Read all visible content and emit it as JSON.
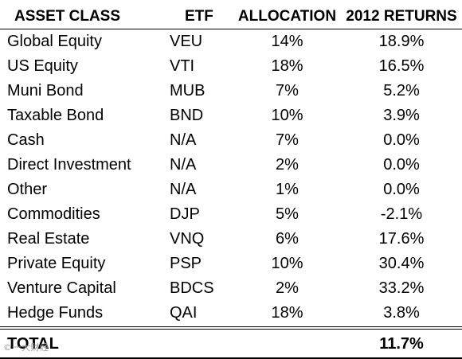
{
  "header": {
    "asset_class": "ASSET CLASS",
    "etf": "ETF",
    "allocation": "ALLOCATION",
    "returns": "2012 RETURNS"
  },
  "rows": [
    {
      "asset_class": "Global Equity",
      "etf": "VEU",
      "allocation": "14%",
      "returns": "18.9%"
    },
    {
      "asset_class": "US Equity",
      "etf": "VTI",
      "allocation": "18%",
      "returns": "16.5%"
    },
    {
      "asset_class": "Muni Bond",
      "etf": "MUB",
      "allocation": "7%",
      "returns": "5.2%"
    },
    {
      "asset_class": "Taxable Bond",
      "etf": "BND",
      "allocation": "10%",
      "returns": "3.9%"
    },
    {
      "asset_class": "Cash",
      "etf": "N/A",
      "allocation": "7%",
      "returns": "0.0%"
    },
    {
      "asset_class": "Direct Investment",
      "etf": "N/A",
      "allocation": "2%",
      "returns": "0.0%"
    },
    {
      "asset_class": "Other",
      "etf": "N/A",
      "allocation": "1%",
      "returns": "0.0%"
    },
    {
      "asset_class": "Commodities",
      "etf": "DJP",
      "allocation": "5%",
      "returns": "-2.1%"
    },
    {
      "asset_class": "Real Estate",
      "etf": "VNQ",
      "allocation": "6%",
      "returns": "17.6%"
    },
    {
      "asset_class": "Private Equity",
      "etf": "PSP",
      "allocation": "10%",
      "returns": "30.4%"
    },
    {
      "asset_class": "Venture Capital",
      "etf": "BDCS",
      "allocation": "2%",
      "returns": "33.2%"
    },
    {
      "asset_class": "Hedge Funds",
      "etf": "QAI",
      "allocation": "18%",
      "returns": "3.8%"
    }
  ],
  "total": {
    "label": "TOTAL",
    "returns": "11.7%"
  },
  "watermark": "©一大财经"
}
